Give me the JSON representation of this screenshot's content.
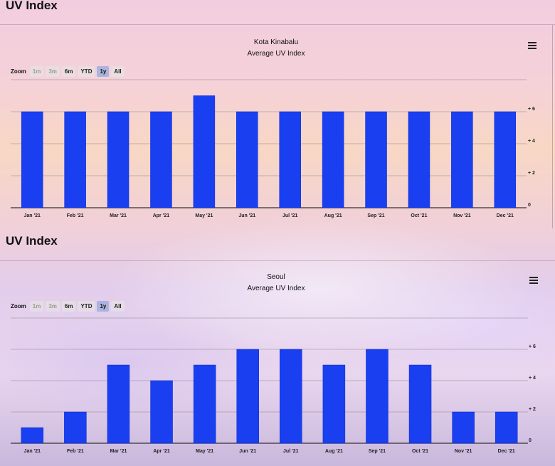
{
  "panels": [
    {
      "section_title": "UV Index",
      "zoom": {
        "label": "Zoom",
        "buttons": [
          "1m",
          "3m",
          "6m",
          "YTD",
          "1y",
          "All"
        ],
        "disabled": [
          "1m",
          "3m"
        ],
        "selected": "1y"
      },
      "menu_icon": "hamburger-menu-icon"
    },
    {
      "section_title": "UV Index",
      "zoom": {
        "label": "Zoom",
        "buttons": [
          "1m",
          "3m",
          "6m",
          "YTD",
          "1y",
          "All"
        ],
        "disabled": [
          "1m",
          "3m"
        ],
        "selected": "1y"
      },
      "menu_icon": "hamburger-menu-icon"
    }
  ],
  "colors": {
    "bar": "#1a3ff0",
    "bar_edge": "#0a2bd0",
    "grid": "#8f8a8f"
  },
  "chart_data": [
    {
      "type": "bar",
      "title": "Kota Kinabalu",
      "subtitle": "Average UV Index",
      "categories": [
        "Jan '21",
        "Feb '21",
        "Mar '21",
        "Apr '21",
        "May '21",
        "Jun '21",
        "Jul '21",
        "Aug '21",
        "Sep '21",
        "Oct '21",
        "Nov '21",
        "Dec '21"
      ],
      "values": [
        6,
        6,
        6,
        6,
        7,
        6,
        6,
        6,
        6,
        6,
        6,
        6
      ],
      "ylim": [
        0,
        8
      ],
      "yticks": [
        0,
        2,
        4,
        6
      ],
      "ytick_labels": [
        "0",
        "+ 2",
        "+ 4",
        "+ 6"
      ],
      "y_axis_side": "right",
      "grid": true
    },
    {
      "type": "bar",
      "title": "Seoul",
      "subtitle": "Average UV Index",
      "categories": [
        "Jan '21",
        "Feb '21",
        "Mar '21",
        "Apr '21",
        "May '21",
        "Jun '21",
        "Jul '21",
        "Aug '21",
        "Sep '21",
        "Oct '21",
        "Nov '21",
        "Dec '21"
      ],
      "values": [
        1,
        2,
        5,
        4,
        5,
        6,
        6,
        5,
        6,
        5,
        2,
        2
      ],
      "ylim": [
        0,
        8
      ],
      "yticks": [
        0,
        2,
        4,
        6
      ],
      "ytick_labels": [
        "0",
        "+ 2",
        "+ 4",
        "+ 6"
      ],
      "y_axis_side": "right",
      "grid": true
    }
  ]
}
